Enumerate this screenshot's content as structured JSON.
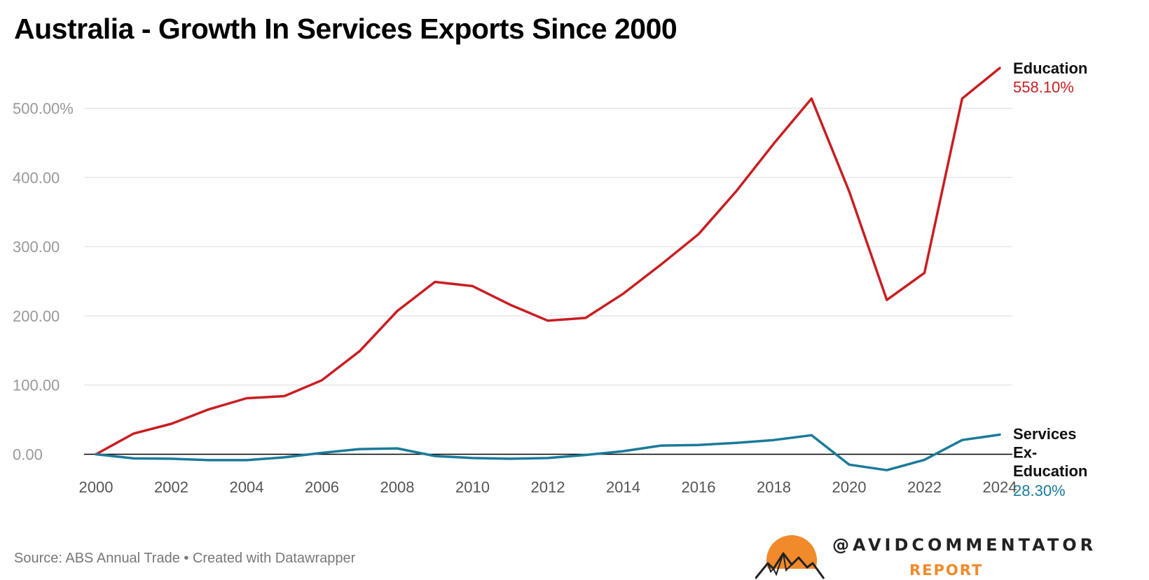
{
  "title": "Australia - Growth In Services Exports Since 2000",
  "source": "Source: ABS Annual Trade • Created with Datawrapper",
  "brand": {
    "handle": "@AVIDCOMMENTATOR",
    "sub": "REPORT"
  },
  "colors": {
    "education": "#c81e22",
    "services": "#1a7b99",
    "grid": "#dddddd",
    "axis": "#000000",
    "brand": "#f08a2b"
  },
  "chart_data": {
    "type": "line",
    "title": "Australia - Growth In Services Exports Since 2000",
    "xlabel": "",
    "ylabel": "",
    "x": [
      2000,
      2001,
      2002,
      2003,
      2004,
      2005,
      2006,
      2007,
      2008,
      2009,
      2010,
      2011,
      2012,
      2013,
      2014,
      2015,
      2016,
      2017,
      2018,
      2019,
      2020,
      2021,
      2022,
      2023,
      2024
    ],
    "xlim": [
      2000,
      2024
    ],
    "ylim": [
      -20,
      570
    ],
    "yticks": [
      0,
      100,
      200,
      300,
      400,
      500
    ],
    "ytick_labels": [
      "0.00",
      "100.00",
      "200.00",
      "300.00",
      "400.00",
      "500.00%"
    ],
    "xticks": [
      2000,
      2002,
      2004,
      2006,
      2008,
      2010,
      2012,
      2014,
      2016,
      2018,
      2020,
      2022,
      2024
    ],
    "xtick_labels": [
      "2000",
      "2002",
      "2004",
      "2006",
      "2008",
      "2010",
      "2012",
      "2014",
      "2016",
      "2018",
      "2020",
      "2022",
      "2024"
    ],
    "series": [
      {
        "name": "Education",
        "end_label": "558.10%",
        "values": [
          0,
          30,
          44,
          65,
          81,
          84,
          107,
          149,
          207,
          249,
          243,
          216,
          193,
          197,
          232,
          274,
          318,
          380,
          449,
          514,
          380,
          223,
          262,
          514,
          558.1
        ]
      },
      {
        "name": "Services Ex-Education",
        "end_label": "28.30%",
        "name_lines": [
          "Services",
          "Ex-",
          "Education"
        ],
        "values": [
          0,
          -6,
          -6.5,
          -8.5,
          -8.5,
          -4.5,
          2,
          7.5,
          8.5,
          -2.5,
          -5.5,
          -6.5,
          -5.5,
          -1,
          4.5,
          12.5,
          13.5,
          16.5,
          20.5,
          27.5,
          -15,
          -23,
          -8,
          20.5,
          28.3
        ]
      }
    ]
  }
}
